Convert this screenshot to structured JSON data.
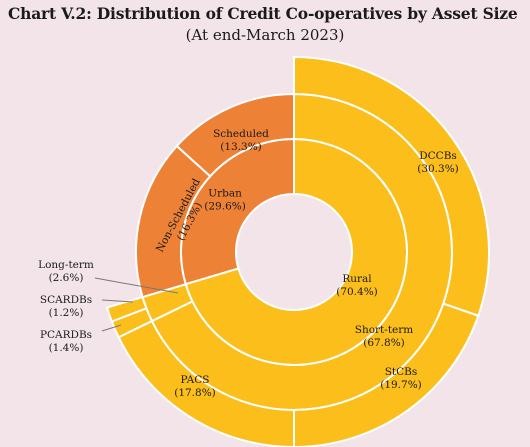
{
  "chart_data": {
    "type": "sunburst",
    "title": "Chart V.2: Distribution of Credit Co-operatives by Asset Size",
    "subtitle": "(At end-March 2023)",
    "colors": {
      "urban": "#ed8136",
      "rural": "#fbbe1a",
      "stroke": "#ffffff"
    },
    "inner": [
      {
        "name": "Urban",
        "value": 29.6,
        "label": "(29.6%)"
      },
      {
        "name": "Rural",
        "value": 70.4,
        "label": "(70.4%)"
      }
    ],
    "middle": [
      {
        "name": "Urban",
        "value": 29.6,
        "label": ""
      },
      {
        "name": "Short-term",
        "value": 67.8,
        "label": "(67.8%)"
      },
      {
        "name": "Long-term",
        "value": 2.6,
        "label": "(2.6%)"
      }
    ],
    "outer": [
      {
        "name": "DCCBs",
        "value": 30.3,
        "label": "(30.3%)"
      },
      {
        "name": "StCBs",
        "value": 19.7,
        "label": "(19.7%)"
      },
      {
        "name": "PACS",
        "value": 17.8,
        "label": "(17.8%)"
      },
      {
        "name": "PCARDBs",
        "value": 1.4,
        "label": "(1.4%)"
      },
      {
        "name": "SCARDBs",
        "value": 1.2,
        "label": "(1.2%)"
      },
      {
        "name": "Non-Scheduled",
        "value": 16.3,
        "label": "(16.3%)"
      },
      {
        "name": "Scheduled",
        "value": 13.3,
        "label": "(13.3%)"
      }
    ]
  }
}
